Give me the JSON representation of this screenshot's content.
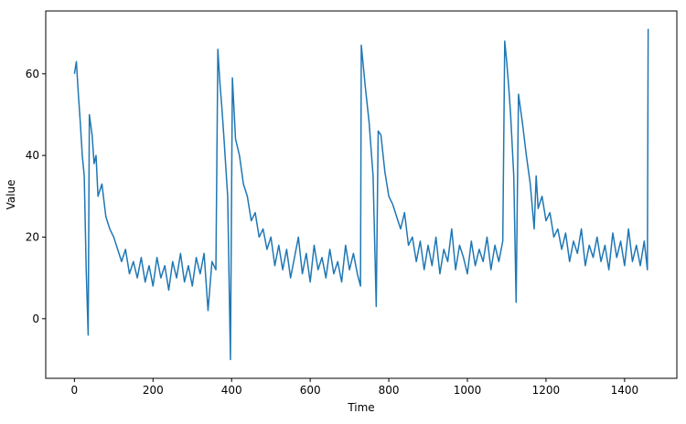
{
  "chart_data": {
    "type": "line",
    "xlabel": "Time",
    "ylabel": "Value",
    "x": [
      0,
      5,
      10,
      15,
      20,
      25,
      30,
      35,
      38,
      45,
      50,
      55,
      60,
      70,
      80,
      90,
      100,
      110,
      120,
      130,
      140,
      150,
      160,
      170,
      180,
      190,
      200,
      210,
      220,
      230,
      240,
      250,
      260,
      270,
      280,
      290,
      300,
      310,
      320,
      330,
      340,
      350,
      360,
      365,
      370,
      375,
      380,
      390,
      397,
      402,
      410,
      420,
      430,
      440,
      450,
      460,
      470,
      480,
      490,
      500,
      510,
      520,
      530,
      540,
      550,
      560,
      570,
      580,
      590,
      600,
      610,
      620,
      630,
      640,
      650,
      660,
      670,
      680,
      690,
      700,
      710,
      720,
      728,
      730,
      735,
      740,
      750,
      760,
      768,
      773,
      780,
      790,
      800,
      810,
      820,
      830,
      840,
      850,
      860,
      870,
      880,
      890,
      900,
      910,
      920,
      930,
      940,
      950,
      960,
      970,
      980,
      990,
      1000,
      1010,
      1020,
      1030,
      1040,
      1050,
      1060,
      1070,
      1080,
      1090,
      1095,
      1100,
      1105,
      1110,
      1118,
      1124,
      1130,
      1140,
      1150,
      1160,
      1170,
      1175,
      1180,
      1190,
      1200,
      1210,
      1220,
      1230,
      1240,
      1250,
      1260,
      1270,
      1280,
      1290,
      1300,
      1310,
      1320,
      1330,
      1340,
      1350,
      1360,
      1370,
      1380,
      1390,
      1400,
      1410,
      1420,
      1430,
      1440,
      1450,
      1458,
      1460
    ],
    "series": [
      {
        "name": "Value",
        "color": "#1f77b4",
        "values": [
          60,
          63,
          55,
          48,
          40,
          35,
          12,
          -4,
          50,
          45,
          38,
          40,
          30,
          33,
          25,
          22,
          20,
          17,
          14,
          17,
          11,
          14,
          10,
          15,
          9,
          13,
          8,
          15,
          10,
          13,
          7,
          14,
          10,
          16,
          9,
          13,
          8,
          15,
          11,
          16,
          2,
          14,
          12,
          66,
          58,
          52,
          45,
          30,
          -10,
          59,
          44,
          40,
          33,
          30,
          24,
          26,
          20,
          22,
          17,
          20,
          13,
          18,
          12,
          17,
          10,
          15,
          20,
          11,
          16,
          9,
          18,
          12,
          15,
          10,
          17,
          11,
          14,
          9,
          18,
          12,
          16,
          11,
          8,
          67,
          62,
          57,
          48,
          35,
          3,
          46,
          45,
          36,
          30,
          28,
          25,
          22,
          26,
          18,
          20,
          14,
          19,
          12,
          18,
          13,
          20,
          11,
          17,
          14,
          22,
          12,
          18,
          15,
          11,
          19,
          13,
          17,
          14,
          20,
          12,
          18,
          14,
          19,
          68,
          63,
          57,
          50,
          35,
          4,
          55,
          48,
          40,
          33,
          22,
          35,
          27,
          30,
          24,
          26,
          20,
          22,
          17,
          21,
          14,
          19,
          16,
          22,
          13,
          18,
          15,
          20,
          14,
          18,
          12,
          21,
          15,
          19,
          13,
          22,
          14,
          18,
          13,
          19,
          12,
          71
        ]
      }
    ],
    "xlim": [
      -73,
      1533
    ],
    "ylim": [
      -14.6,
      75.4
    ],
    "xticks": [
      0,
      200,
      400,
      600,
      800,
      1000,
      1200,
      1400
    ],
    "yticks": [
      0,
      20,
      40,
      60
    ]
  }
}
